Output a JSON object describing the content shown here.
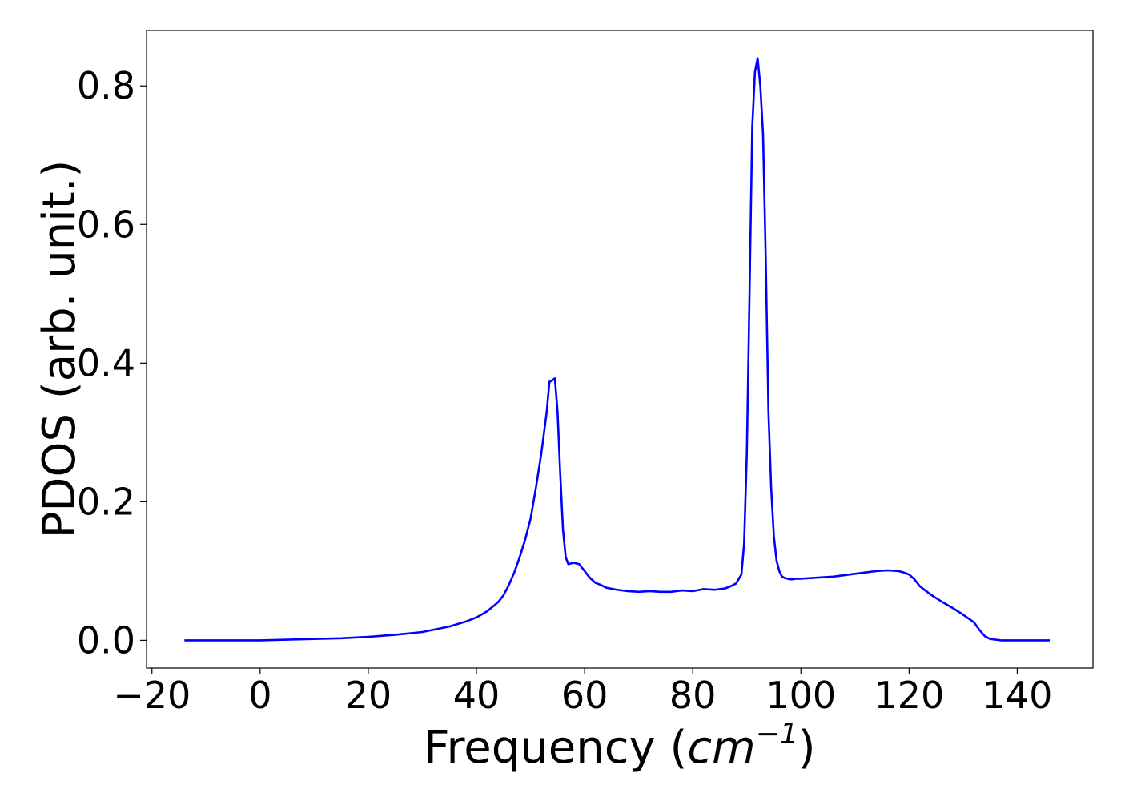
{
  "chart_data": {
    "type": "line",
    "title": "",
    "xlabel_main": "Frequency (",
    "xlabel_var": "cm",
    "xlabel_exp": "−1",
    "xlabel_end": ")",
    "ylabel": "PDOS (arb. unit.)",
    "xlim": [
      -21,
      154
    ],
    "ylim": [
      -0.04,
      0.88
    ],
    "xticks": [
      -20,
      0,
      20,
      40,
      60,
      80,
      100,
      120,
      140
    ],
    "xtick_labels": [
      "−20",
      "0",
      "20",
      "40",
      "60",
      "80",
      "100",
      "120",
      "140"
    ],
    "yticks": [
      0.0,
      0.2,
      0.4,
      0.6,
      0.8
    ],
    "ytick_labels": [
      "0.0",
      "0.2",
      "0.4",
      "0.6",
      "0.8"
    ],
    "grid": false,
    "legend": "none",
    "line_color": "#0000ff",
    "series": [
      {
        "x": [
          -14,
          -5,
          0,
          5,
          10,
          15,
          20,
          25,
          30,
          35,
          38,
          40,
          42,
          44,
          45,
          46,
          47,
          48,
          49,
          50,
          51,
          52,
          53,
          53.5,
          54,
          54.5,
          55,
          55.5,
          56,
          56.5,
          57,
          58,
          59,
          60,
          61,
          62,
          63,
          64,
          66,
          68,
          70,
          72,
          74,
          76,
          78,
          80,
          82,
          84,
          86,
          87,
          88,
          89,
          89.5,
          90,
          90.5,
          91,
          91.5,
          92,
          92.5,
          93,
          93.5,
          94,
          94.5,
          95,
          95.5,
          96,
          96.5,
          97,
          97.5,
          98,
          98.5,
          99,
          100,
          102,
          104,
          106,
          108,
          110,
          112,
          114,
          116,
          118,
          119,
          120,
          121,
          122,
          124,
          126,
          128,
          130,
          132,
          133,
          134,
          135,
          137,
          140,
          146
        ],
        "y": [
          0.0,
          0.0,
          0.0,
          0.001,
          0.002,
          0.003,
          0.005,
          0.008,
          0.012,
          0.02,
          0.027,
          0.033,
          0.042,
          0.055,
          0.065,
          0.08,
          0.098,
          0.12,
          0.145,
          0.175,
          0.22,
          0.27,
          0.33,
          0.373,
          0.375,
          0.378,
          0.33,
          0.24,
          0.16,
          0.12,
          0.11,
          0.112,
          0.11,
          0.1,
          0.09,
          0.083,
          0.08,
          0.076,
          0.073,
          0.071,
          0.07,
          0.071,
          0.07,
          0.07,
          0.072,
          0.071,
          0.074,
          0.073,
          0.075,
          0.078,
          0.082,
          0.095,
          0.14,
          0.27,
          0.5,
          0.74,
          0.82,
          0.84,
          0.8,
          0.73,
          0.55,
          0.33,
          0.22,
          0.15,
          0.115,
          0.1,
          0.092,
          0.09,
          0.089,
          0.088,
          0.088,
          0.089,
          0.089,
          0.09,
          0.091,
          0.092,
          0.094,
          0.096,
          0.098,
          0.1,
          0.101,
          0.1,
          0.098,
          0.095,
          0.088,
          0.078,
          0.066,
          0.056,
          0.047,
          0.037,
          0.026,
          0.015,
          0.006,
          0.002,
          0.0,
          0.0,
          0.0
        ]
      }
    ]
  }
}
